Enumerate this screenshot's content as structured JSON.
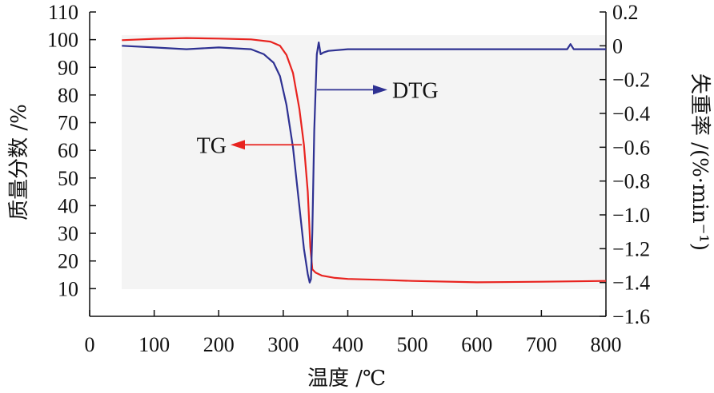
{
  "chart_data": {
    "type": "line",
    "xlabel": "温度 /℃",
    "ylabel_left": "质量分数 /%",
    "ylabel_right": "失重率 /(%·min⁻¹)",
    "xlim": [
      0,
      800
    ],
    "ylim_left": [
      0,
      110
    ],
    "ylim_right": [
      -1.6,
      0.2
    ],
    "x_ticks": [
      "0",
      "100",
      "200",
      "300",
      "400",
      "500",
      "600",
      "700",
      "800"
    ],
    "y_left_ticks": [
      "10",
      "20",
      "30",
      "40",
      "50",
      "60",
      "70",
      "80",
      "90",
      "100",
      "110"
    ],
    "y_right_ticks": [
      "0.2",
      "0",
      "−0.2",
      "−0.4",
      "−0.6",
      "−0.8",
      "−1.0",
      "−1.2",
      "−1.4",
      "−1.6"
    ],
    "grid": false,
    "series": [
      {
        "name": "TG",
        "axis": "left",
        "color": "#e8231f",
        "x": [
          50,
          100,
          150,
          200,
          250,
          280,
          295,
          305,
          315,
          325,
          332,
          338,
          342,
          345,
          350,
          360,
          380,
          400,
          450,
          500,
          600,
          700,
          800
        ],
        "y": [
          99.8,
          100.3,
          100.6,
          100.4,
          100.1,
          99.3,
          97.8,
          94.5,
          88.0,
          75.0,
          62.0,
          45.0,
          25.0,
          17.0,
          15.8,
          14.7,
          13.9,
          13.5,
          13.2,
          12.8,
          12.3,
          12.5,
          12.8
        ]
      },
      {
        "name": "DTG",
        "axis": "right",
        "color": "#2e3192",
        "x": [
          50,
          100,
          150,
          200,
          250,
          270,
          285,
          295,
          305,
          315,
          325,
          332,
          338,
          341,
          343,
          345,
          348,
          352,
          355,
          358,
          362,
          370,
          400,
          500,
          600,
          700,
          740,
          745,
          750,
          800
        ],
        "y": [
          0.0,
          -0.01,
          -0.02,
          -0.01,
          -0.02,
          -0.05,
          -0.1,
          -0.18,
          -0.35,
          -0.6,
          -0.95,
          -1.2,
          -1.35,
          -1.4,
          -1.38,
          -1.1,
          -0.5,
          -0.05,
          0.02,
          -0.05,
          -0.04,
          -0.03,
          -0.02,
          -0.02,
          -0.02,
          -0.02,
          -0.02,
          0.01,
          -0.02,
          -0.02
        ]
      }
    ],
    "annotations": [
      "TG",
      "DTG"
    ]
  }
}
